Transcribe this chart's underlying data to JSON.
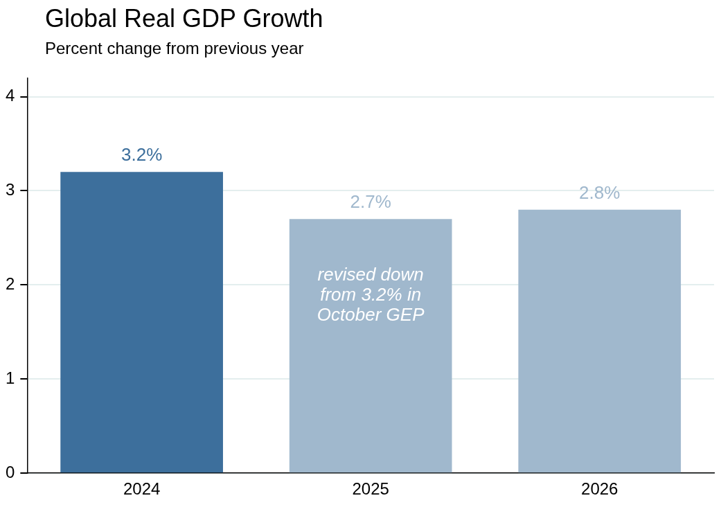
{
  "chart_data": {
    "type": "bar",
    "title": "Global Real GDP Growth",
    "subtitle": "Percent change from previous year",
    "categories": [
      "2024",
      "2025",
      "2026"
    ],
    "values": [
      3.2,
      2.7,
      2.8
    ],
    "colors": [
      "#3d6f9c",
      "#a0b8cd",
      "#a0b8cd"
    ],
    "value_labels": [
      "3.2%",
      "2.7%",
      "2.8%"
    ],
    "ylim": [
      0,
      4.2
    ],
    "yticks": [
      0,
      1,
      2,
      3,
      4
    ],
    "grid": "y",
    "legend": false,
    "annotations": [
      "revised down from 3.2% in October GEP"
    ]
  }
}
